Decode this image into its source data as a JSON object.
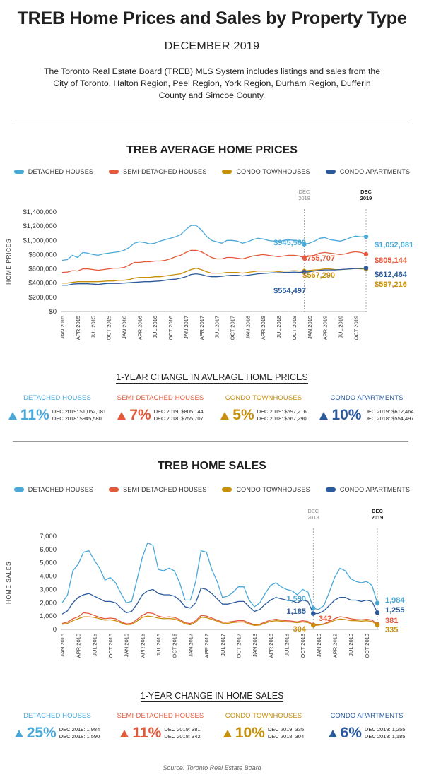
{
  "page": {
    "title": "TREB Home Prices and Sales by Property Type",
    "subtitle": "DECEMBER 2019",
    "intro": "The Toronto Real Estate Board (TREB) MLS System includes listings and sales from the City of Toronto, Halton Region, Peel Region, York Region, Durham Region, Dufferin County and Simcoe County.",
    "source": "Source: Toronto Real Estate Board"
  },
  "colors": {
    "detached": "#4aa8d8",
    "semi": "#e4593a",
    "townhouse": "#c8900a",
    "apartment": "#2a5a9c"
  },
  "legend": [
    "DETACHED HOUSES",
    "SEMI-DETACHED HOUSES",
    "CONDO TOWNHOUSES",
    "CONDO APARTMENTS"
  ],
  "markers": [
    "DEC 2018",
    "DEC 2019"
  ],
  "x_ticks": [
    "JAN 2015",
    "APR 2015",
    "JUL 2015",
    "OCT 2015",
    "JAN 2016",
    "APR 2016",
    "JUL 2016",
    "OCT 2016",
    "JAN 2017",
    "APR 2017",
    "JUL 2017",
    "OCT 2017",
    "JAN 2018",
    "APR 2018",
    "JUL 2018",
    "OCT 2018",
    "JAN 2019",
    "APR 2019",
    "JUL 2019",
    "OCT 2019"
  ],
  "prices": {
    "section_title": "TREB AVERAGE HOME PRICES",
    "ylabel": "HOME PRICES",
    "y_ticks": [
      "$0",
      "$200,000",
      "$400,000",
      "$600,000",
      "$800,000",
      "$1,000,000",
      "$1,200,000",
      "$1,400,000"
    ],
    "labels_2018": [
      "$945,580",
      "$755,707",
      "$567,290",
      "$554,497"
    ],
    "labels_2019": [
      "$1,052,081",
      "$805,144",
      "$612,464",
      "$597,216"
    ],
    "change_title": "1-YEAR CHANGE IN AVERAGE HOME PRICES",
    "cards": [
      {
        "label": "DETACHED HOUSES",
        "pct": "11%",
        "line1": "DEC 2019: $1,052,081",
        "line2": "DEC 2018: $945,580"
      },
      {
        "label": "SEMI-DETACHED HOUSES",
        "pct": "7%",
        "line1": "DEC 2019: $805,144",
        "line2": "DEC 2018: $755,707"
      },
      {
        "label": "CONDO TOWNHOUSES",
        "pct": "5%",
        "line1": "DEC 2019: $597,216",
        "line2": "DEC 2018: $567,290"
      },
      {
        "label": "CONDO APARTMENTS",
        "pct": "10%",
        "line1": "DEC 2019: $612,464",
        "line2": "DEC 2018: $554,497"
      }
    ]
  },
  "sales": {
    "section_title": "TREB HOME SALES",
    "ylabel": "HOME SALES",
    "y_ticks": [
      "0",
      "1,000",
      "2,000",
      "3,000",
      "4,000",
      "5,000",
      "6,000",
      "7,000"
    ],
    "labels_2018": [
      "1,590",
      "342",
      "304",
      "1,185"
    ],
    "labels_2019": [
      "1,984",
      "381",
      "335",
      "1,255"
    ],
    "change_title": "1-YEAR CHANGE IN HOME SALES",
    "cards": [
      {
        "label": "DETACHED HOUSES",
        "pct": "25%",
        "line1": "DEC 2019: 1,984",
        "line2": "DEC 2018: 1,590"
      },
      {
        "label": "SEMI-DETACHED HOUSES",
        "pct": "11%",
        "line1": "DEC 2019: 381",
        "line2": "DEC 2018: 342"
      },
      {
        "label": "CONDO TOWNHOUSES",
        "pct": "10%",
        "line1": "DEC 2019: 335",
        "line2": "DEC 2018: 304"
      },
      {
        "label": "CONDO APARTMENTS",
        "pct": "6%",
        "line1": "DEC 2019: 1,255",
        "line2": "DEC 2018: 1,185"
      }
    ]
  },
  "chart_data": [
    {
      "type": "line",
      "title": "TREB AVERAGE HOME PRICES",
      "ylabel": "HOME PRICES",
      "ylim": [
        0,
        1400000
      ],
      "x_start": "2015-01",
      "x_end": "2019-12",
      "grid": false,
      "legend": "top",
      "series": [
        {
          "name": "DETACHED HOUSES",
          "values": [
            720000,
            730000,
            790000,
            760000,
            830000,
            820000,
            800000,
            790000,
            810000,
            820000,
            830000,
            840000,
            860000,
            900000,
            960000,
            980000,
            970000,
            950000,
            960000,
            990000,
            1010000,
            1030000,
            1050000,
            1080000,
            1150000,
            1210000,
            1210000,
            1150000,
            1060000,
            1000000,
            980000,
            960000,
            1000000,
            1000000,
            990000,
            960000,
            980000,
            1010000,
            1030000,
            1020000,
            1000000,
            990000,
            980000,
            1000000,
            1010000,
            1000000,
            990000,
            945580,
            960000,
            990000,
            1030000,
            1040000,
            1010000,
            1000000,
            990000,
            1010000,
            1040000,
            1060000,
            1050000,
            1052081
          ]
        },
        {
          "name": "SEMI-DETACHED HOUSES",
          "values": [
            550000,
            555000,
            575000,
            570000,
            600000,
            600000,
            590000,
            580000,
            590000,
            600000,
            610000,
            610000,
            620000,
            650000,
            690000,
            690000,
            700000,
            700000,
            710000,
            710000,
            720000,
            740000,
            770000,
            790000,
            830000,
            860000,
            860000,
            840000,
            800000,
            760000,
            740000,
            740000,
            760000,
            760000,
            750000,
            740000,
            760000,
            780000,
            790000,
            800000,
            790000,
            780000,
            770000,
            780000,
            790000,
            790000,
            780000,
            755707,
            780000,
            790000,
            820000,
            830000,
            820000,
            810000,
            800000,
            810000,
            830000,
            840000,
            830000,
            805144
          ]
        },
        {
          "name": "CONDO TOWNHOUSES",
          "values": [
            400000,
            400000,
            410000,
            420000,
            420000,
            420000,
            420000,
            420000,
            425000,
            430000,
            430000,
            440000,
            440000,
            450000,
            470000,
            480000,
            480000,
            480000,
            490000,
            490000,
            500000,
            510000,
            520000,
            530000,
            560000,
            590000,
            610000,
            590000,
            560000,
            540000,
            540000,
            540000,
            550000,
            550000,
            550000,
            540000,
            550000,
            560000,
            570000,
            570000,
            570000,
            570000,
            560000,
            570000,
            570000,
            575000,
            570000,
            567290,
            580000,
            585000,
            590000,
            600000,
            600000,
            590000,
            590000,
            595000,
            600000,
            605000,
            600000,
            597216
          ]
        },
        {
          "name": "CONDO APARTMENTS",
          "values": [
            370000,
            370000,
            385000,
            390000,
            390000,
            390000,
            385000,
            380000,
            390000,
            395000,
            395000,
            395000,
            400000,
            405000,
            410000,
            415000,
            420000,
            420000,
            425000,
            430000,
            440000,
            450000,
            455000,
            470000,
            490000,
            520000,
            530000,
            520000,
            500000,
            490000,
            490000,
            495000,
            505000,
            510000,
            510000,
            500000,
            510000,
            520000,
            530000,
            535000,
            540000,
            545000,
            545000,
            550000,
            550000,
            555000,
            550000,
            554497,
            560000,
            570000,
            580000,
            585000,
            585000,
            585000,
            590000,
            595000,
            600000,
            605000,
            605000,
            612464
          ]
        }
      ],
      "annotations": [
        "DEC 2018",
        "DEC 2019"
      ]
    },
    {
      "type": "line",
      "title": "TREB HOME SALES",
      "ylabel": "HOME SALES",
      "ylim": [
        0,
        7000
      ],
      "x_start": "2015-01",
      "x_end": "2019-12",
      "grid": false,
      "legend": "top",
      "series": [
        {
          "name": "DETACHED HOUSES",
          "values": [
            2000,
            2600,
            4400,
            4900,
            5800,
            5900,
            5200,
            4600,
            3700,
            3900,
            3500,
            2700,
            2000,
            2100,
            3700,
            5400,
            6500,
            6300,
            4500,
            4400,
            4600,
            4400,
            3500,
            2200,
            2200,
            3600,
            5900,
            5800,
            4500,
            3600,
            2400,
            2500,
            2800,
            3200,
            3200,
            2200,
            1700,
            2000,
            2700,
            3300,
            3500,
            3200,
            3000,
            2900,
            2600,
            3000,
            2800,
            1590,
            1500,
            1800,
            2800,
            3900,
            4600,
            4400,
            3800,
            3600,
            3500,
            3600,
            3300,
            1984
          ]
        },
        {
          "name": "SEMI-DETACHED HOUSES",
          "values": [
            450,
            550,
            800,
            950,
            1250,
            1200,
            1050,
            900,
            800,
            850,
            800,
            580,
            420,
            450,
            750,
            1050,
            1250,
            1200,
            1000,
            900,
            950,
            900,
            750,
            500,
            440,
            650,
            1050,
            1000,
            850,
            700,
            550,
            550,
            600,
            650,
            650,
            480,
            350,
            400,
            550,
            700,
            760,
            700,
            650,
            620,
            560,
            650,
            600,
            342,
            350,
            420,
            600,
            800,
            950,
            900,
            800,
            750,
            720,
            760,
            700,
            381
          ]
        },
        {
          "name": "CONDO TOWNHOUSES",
          "values": [
            380,
            450,
            650,
            800,
            950,
            950,
            900,
            800,
            700,
            720,
            650,
            500,
            350,
            380,
            620,
            900,
            1000,
            950,
            850,
            800,
            820,
            780,
            650,
            420,
            350,
            550,
            920,
            880,
            750,
            620,
            470,
            450,
            520,
            550,
            560,
            400,
            300,
            330,
            470,
            600,
            650,
            620,
            570,
            550,
            500,
            560,
            520,
            304,
            320,
            380,
            520,
            680,
            780,
            740,
            660,
            650,
            620,
            650,
            600,
            335
          ]
        },
        {
          "name": "CONDO APARTMENTS",
          "values": [
            1150,
            1400,
            2000,
            2400,
            2600,
            2700,
            2500,
            2300,
            2100,
            2100,
            2000,
            1600,
            1250,
            1350,
            1900,
            2600,
            2900,
            3000,
            2700,
            2600,
            2600,
            2500,
            2200,
            1700,
            1600,
            2000,
            3100,
            3000,
            2700,
            2300,
            1900,
            1900,
            2000,
            2100,
            2100,
            1700,
            1350,
            1500,
            1900,
            2200,
            2400,
            2300,
            2200,
            2150,
            2000,
            2200,
            2100,
            1185,
            1200,
            1400,
            1800,
            2200,
            2400,
            2400,
            2200,
            2200,
            2100,
            2200,
            2100,
            1255
          ]
        }
      ],
      "annotations": [
        "DEC 2018",
        "DEC 2019"
      ]
    }
  ]
}
